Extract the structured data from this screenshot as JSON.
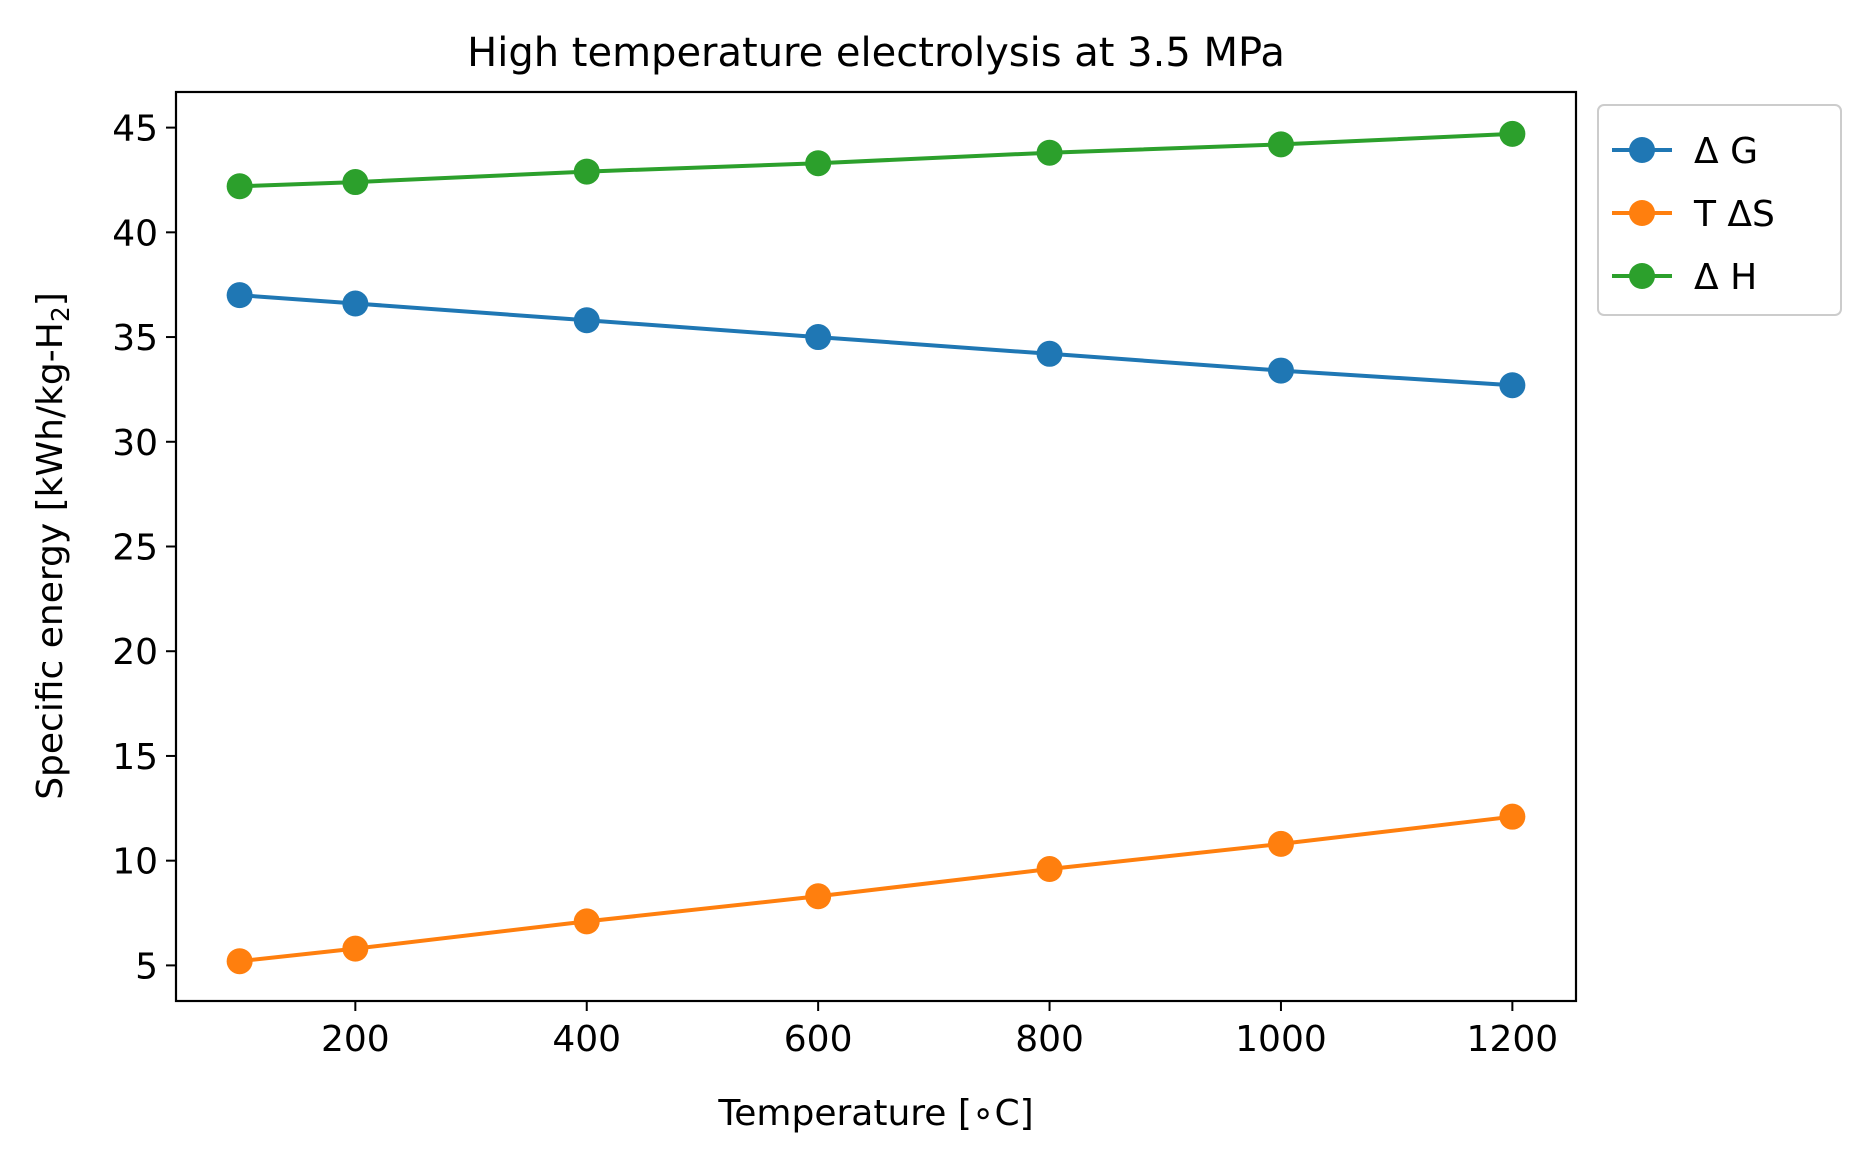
{
  "chart_data": {
    "type": "line",
    "title": "High temperature electrolysis at 3.5 MPa",
    "xlabel": "Temperature [∘C]",
    "ylabel_main": "Specific energy [kWh/kg-H",
    "ylabel_sub": "2",
    "ylabel_end": "]",
    "x": [
      100,
      200,
      400,
      600,
      800,
      1000,
      1200
    ],
    "xlim": [
      45,
      1255
    ],
    "ylim": [
      3.3,
      46.7
    ],
    "xticks": [
      200,
      400,
      600,
      800,
      1000,
      1200
    ],
    "yticks": [
      5,
      10,
      15,
      20,
      25,
      30,
      35,
      40,
      45
    ],
    "grid": false,
    "legend_position": "outside-top-right",
    "series": [
      {
        "name": "Δ G",
        "color": "#1f77b4",
        "values": [
          37.0,
          36.6,
          35.8,
          35.0,
          34.2,
          33.4,
          32.7
        ]
      },
      {
        "name": "T ΔS",
        "color": "#ff7f0e",
        "values": [
          5.2,
          5.8,
          7.1,
          8.3,
          9.6,
          10.8,
          12.1
        ]
      },
      {
        "name": "Δ H",
        "color": "#2ca02c",
        "values": [
          42.2,
          42.4,
          42.9,
          43.3,
          43.8,
          44.2,
          44.7
        ]
      }
    ]
  }
}
